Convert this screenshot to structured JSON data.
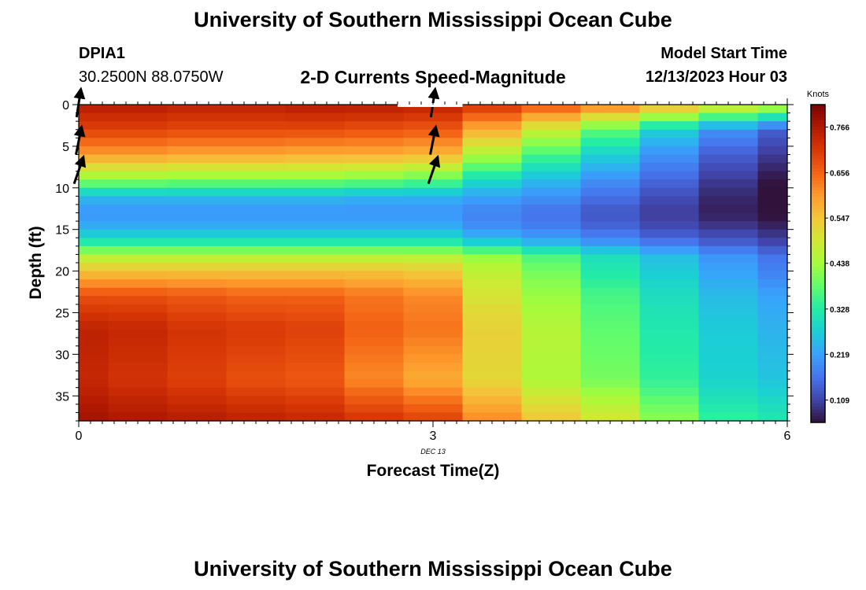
{
  "header": {
    "title": "University of Southern Mississippi Ocean Cube",
    "station": "DPIA1",
    "coords": "30.2500N  88.0750W",
    "subtitle": "2-D Currents Speed-Magnitude",
    "model_label": "Model Start Time",
    "model_time": "12/13/2023 Hour 03"
  },
  "footer": {
    "title": "University of Southern Mississippi Ocean Cube"
  },
  "chart_data": {
    "type": "heatmap",
    "title": "2-D Currents Speed-Magnitude",
    "xlabel": "Forecast Time(Z)",
    "ylabel": "Depth (ft)",
    "x_ticks": [
      0,
      3,
      6
    ],
    "x_tick_labels": [
      "0",
      "3",
      "6"
    ],
    "x_date_label": "DEC 13",
    "y_ticks": [
      0,
      5,
      10,
      15,
      20,
      25,
      30,
      35
    ],
    "y_tick_labels": [
      "0",
      "5",
      "10",
      "15",
      "20",
      "25",
      "30",
      "35"
    ],
    "xlim": [
      0,
      6
    ],
    "ylim": [
      0,
      38
    ],
    "y_inverted": true,
    "columns_x": [
      0,
      0.5,
      1,
      1.5,
      2,
      2.5,
      3,
      3.5,
      4,
      4.5,
      5,
      5.5,
      6
    ],
    "column_profiles": [
      [
        [
          0,
          0.76
        ],
        [
          3,
          0.7
        ],
        [
          6,
          0.6
        ],
        [
          9,
          0.42
        ],
        [
          11,
          0.25
        ],
        [
          13,
          0.2
        ],
        [
          15,
          0.24
        ],
        [
          17,
          0.35
        ],
        [
          18,
          0.45
        ],
        [
          20,
          0.55
        ],
        [
          23,
          0.68
        ],
        [
          27,
          0.75
        ],
        [
          33,
          0.74
        ],
        [
          38,
          0.78
        ]
      ],
      [
        [
          0,
          0.76
        ],
        [
          3,
          0.7
        ],
        [
          6,
          0.6
        ],
        [
          9,
          0.42
        ],
        [
          11,
          0.25
        ],
        [
          13,
          0.2
        ],
        [
          15,
          0.24
        ],
        [
          17,
          0.35
        ],
        [
          18,
          0.45
        ],
        [
          20,
          0.55
        ],
        [
          23,
          0.68
        ],
        [
          27,
          0.74
        ],
        [
          33,
          0.72
        ],
        [
          38,
          0.77
        ]
      ],
      [
        [
          0,
          0.75
        ],
        [
          3,
          0.69
        ],
        [
          6,
          0.59
        ],
        [
          9,
          0.41
        ],
        [
          11,
          0.25
        ],
        [
          13,
          0.2
        ],
        [
          15,
          0.24
        ],
        [
          17,
          0.35
        ],
        [
          18,
          0.45
        ],
        [
          20,
          0.55
        ],
        [
          23,
          0.67
        ],
        [
          27,
          0.72
        ],
        [
          33,
          0.7
        ],
        [
          38,
          0.76
        ]
      ],
      [
        [
          0,
          0.75
        ],
        [
          3,
          0.69
        ],
        [
          6,
          0.59
        ],
        [
          9,
          0.41
        ],
        [
          11,
          0.25
        ],
        [
          13,
          0.2
        ],
        [
          15,
          0.24
        ],
        [
          17,
          0.35
        ],
        [
          18,
          0.45
        ],
        [
          20,
          0.55
        ],
        [
          23,
          0.66
        ],
        [
          27,
          0.71
        ],
        [
          33,
          0.68
        ],
        [
          38,
          0.75
        ]
      ],
      [
        [
          0,
          0.76
        ],
        [
          3,
          0.69
        ],
        [
          6,
          0.58
        ],
        [
          9,
          0.41
        ],
        [
          11,
          0.25
        ],
        [
          13,
          0.2
        ],
        [
          15,
          0.24
        ],
        [
          17,
          0.35
        ],
        [
          18,
          0.45
        ],
        [
          20,
          0.55
        ],
        [
          23,
          0.66
        ],
        [
          27,
          0.7
        ],
        [
          33,
          0.67
        ],
        [
          38,
          0.74
        ]
      ],
      [
        [
          0,
          0.76
        ],
        [
          3,
          0.68
        ],
        [
          6,
          0.58
        ],
        [
          9,
          0.4
        ],
        [
          11,
          0.24
        ],
        [
          13,
          0.2
        ],
        [
          15,
          0.24
        ],
        [
          17,
          0.35
        ],
        [
          18,
          0.45
        ],
        [
          20,
          0.55
        ],
        [
          23,
          0.64
        ],
        [
          27,
          0.66
        ],
        [
          33,
          0.62
        ],
        [
          38,
          0.72
        ]
      ],
      [
        [
          0,
          0.75
        ],
        [
          3,
          0.67
        ],
        [
          6,
          0.57
        ],
        [
          9,
          0.38
        ],
        [
          11,
          0.24
        ],
        [
          13,
          0.2
        ],
        [
          15,
          0.24
        ],
        [
          17,
          0.35
        ],
        [
          18,
          0.45
        ],
        [
          20,
          0.54
        ],
        [
          23,
          0.62
        ],
        [
          27,
          0.64
        ],
        [
          33,
          0.58
        ],
        [
          38,
          0.7
        ]
      ],
      [
        [
          0,
          0.72
        ],
        [
          3,
          0.58
        ],
        [
          6,
          0.45
        ],
        [
          9,
          0.3
        ],
        [
          11,
          0.22
        ],
        [
          13,
          0.18
        ],
        [
          15,
          0.2
        ],
        [
          17,
          0.3
        ],
        [
          18,
          0.42
        ],
        [
          20,
          0.47
        ],
        [
          23,
          0.5
        ],
        [
          27,
          0.53
        ],
        [
          33,
          0.52
        ],
        [
          38,
          0.62
        ]
      ],
      [
        [
          0,
          0.68
        ],
        [
          3,
          0.48
        ],
        [
          6,
          0.36
        ],
        [
          9,
          0.25
        ],
        [
          11,
          0.2
        ],
        [
          13,
          0.16
        ],
        [
          15,
          0.18
        ],
        [
          17,
          0.26
        ],
        [
          18,
          0.36
        ],
        [
          20,
          0.4
        ],
        [
          23,
          0.43
        ],
        [
          27,
          0.46
        ],
        [
          33,
          0.45
        ],
        [
          38,
          0.55
        ]
      ],
      [
        [
          0,
          0.64
        ],
        [
          3,
          0.38
        ],
        [
          6,
          0.28
        ],
        [
          9,
          0.2
        ],
        [
          11,
          0.16
        ],
        [
          13,
          0.13
        ],
        [
          15,
          0.15
        ],
        [
          17,
          0.22
        ],
        [
          18,
          0.3
        ],
        [
          20,
          0.32
        ],
        [
          23,
          0.36
        ],
        [
          27,
          0.38
        ],
        [
          33,
          0.4
        ],
        [
          38,
          0.5
        ]
      ],
      [
        [
          0,
          0.58
        ],
        [
          3,
          0.28
        ],
        [
          6,
          0.2
        ],
        [
          9,
          0.15
        ],
        [
          11,
          0.12
        ],
        [
          13,
          0.1
        ],
        [
          15,
          0.12
        ],
        [
          17,
          0.18
        ],
        [
          18,
          0.25
        ],
        [
          20,
          0.27
        ],
        [
          23,
          0.3
        ],
        [
          27,
          0.32
        ],
        [
          33,
          0.34
        ],
        [
          38,
          0.42
        ]
      ],
      [
        [
          0,
          0.52
        ],
        [
          3,
          0.2
        ],
        [
          6,
          0.14
        ],
        [
          9,
          0.1
        ],
        [
          11,
          0.08
        ],
        [
          13,
          0.07
        ],
        [
          15,
          0.1
        ],
        [
          17,
          0.15
        ],
        [
          18,
          0.2
        ],
        [
          20,
          0.22
        ],
        [
          23,
          0.25
        ],
        [
          27,
          0.27
        ],
        [
          33,
          0.28
        ],
        [
          38,
          0.34
        ]
      ],
      [
        [
          0,
          0.48
        ],
        [
          3,
          0.14
        ],
        [
          6,
          0.1
        ],
        [
          9,
          0.06
        ],
        [
          11,
          0.05
        ],
        [
          13,
          0.05
        ],
        [
          15,
          0.08
        ],
        [
          17,
          0.12
        ],
        [
          18,
          0.16
        ],
        [
          20,
          0.18
        ],
        [
          23,
          0.22
        ],
        [
          27,
          0.24
        ],
        [
          33,
          0.26
        ],
        [
          38,
          0.32
        ]
      ]
    ],
    "vectors": [
      {
        "time": 0,
        "depth": 1,
        "u": 0.15,
        "v": 1
      },
      {
        "time": 0,
        "depth": 5.5,
        "u": 0.2,
        "v": 1
      },
      {
        "time": 0,
        "depth": 9,
        "u": 0.35,
        "v": 1
      },
      {
        "time": 3,
        "depth": 1,
        "u": 0.15,
        "v": 1
      },
      {
        "time": 3,
        "depth": 5.5,
        "u": 0.2,
        "v": 1
      },
      {
        "time": 3,
        "depth": 9,
        "u": 0.35,
        "v": 1
      }
    ],
    "colorbar": {
      "title": "Knots",
      "min": 0.055,
      "max": 0.82,
      "ticks": [
        0.766,
        0.656,
        0.547,
        0.438,
        0.328,
        0.219,
        0.109
      ],
      "tick_labels": [
        "0.766",
        "0.656",
        "0.547",
        "0.438",
        "0.328",
        "0.219",
        "0.109"
      ]
    },
    "colormap": [
      "#30123b",
      "#4145ab",
      "#4675ed",
      "#39a2fc",
      "#1bcfd4",
      "#24eca6",
      "#61fc6c",
      "#a4fc3b",
      "#d1e834",
      "#f3c63a",
      "#fe9b2d",
      "#f36315",
      "#d93806",
      "#b11901",
      "#7a0403"
    ],
    "grid": false,
    "legend": "none"
  }
}
